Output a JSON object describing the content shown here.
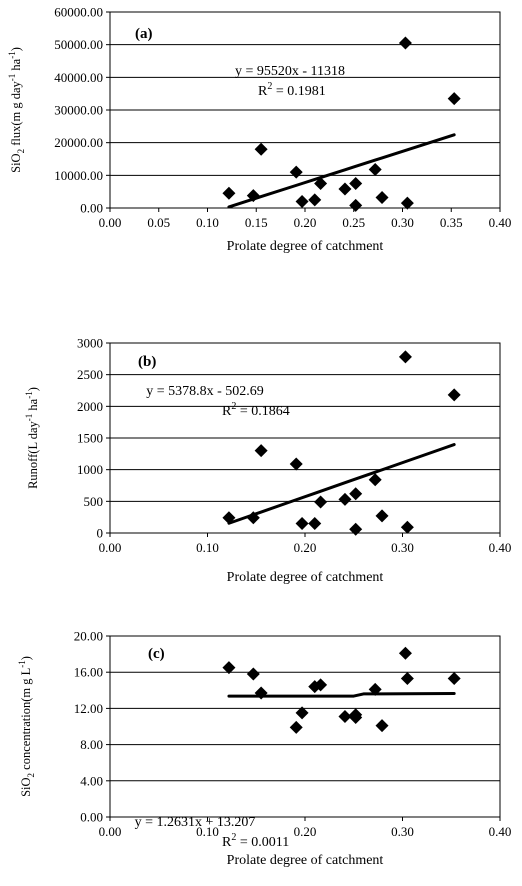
{
  "chart_data": [
    {
      "type": "scatter",
      "panel_label": "(a)",
      "xlabel": "Prolate degree of catchment",
      "ylabel": "SiO2 flux(m g day-1 ha-1)",
      "ylabel_parts": [
        "SiO",
        "2",
        " flux(m g day",
        "-1",
        " ha",
        "-1",
        ")"
      ],
      "xlim": [
        0.0,
        0.4
      ],
      "ylim": [
        0,
        60000
      ],
      "x_ticks": [
        "0.00",
        "0.05",
        "0.10",
        "0.15",
        "0.20",
        "0.25",
        "0.30",
        "0.35",
        "0.40"
      ],
      "y_ticks": [
        "0.00",
        "10000.00",
        "20000.00",
        "30000.00",
        "40000.00",
        "50000.00",
        "60000.00"
      ],
      "grid": "horizontal",
      "points": [
        {
          "x": 0.122,
          "y": 4500
        },
        {
          "x": 0.147,
          "y": 3800
        },
        {
          "x": 0.155,
          "y": 18000
        },
        {
          "x": 0.191,
          "y": 11000
        },
        {
          "x": 0.197,
          "y": 2000
        },
        {
          "x": 0.21,
          "y": 2500
        },
        {
          "x": 0.216,
          "y": 7500
        },
        {
          "x": 0.241,
          "y": 5800
        },
        {
          "x": 0.252,
          "y": 7500
        },
        {
          "x": 0.252,
          "y": 800
        },
        {
          "x": 0.272,
          "y": 11800
        },
        {
          "x": 0.279,
          "y": 3200
        },
        {
          "x": 0.303,
          "y": 50500
        },
        {
          "x": 0.305,
          "y": 1500
        },
        {
          "x": 0.353,
          "y": 33500
        }
      ],
      "trend_label": "y = 95520x - 11318",
      "r2_text": "= 0.1981",
      "trend_points": [
        {
          "x": 0.122,
          "y": 335
        },
        {
          "x": 0.147,
          "y": 2724
        },
        {
          "x": 0.155,
          "y": 3487
        },
        {
          "x": 0.191,
          "y": 6926
        },
        {
          "x": 0.197,
          "y": 7499
        },
        {
          "x": 0.21,
          "y": 8741
        },
        {
          "x": 0.216,
          "y": 9314
        },
        {
          "x": 0.241,
          "y": 11702
        },
        {
          "x": 0.252,
          "y": 12753
        },
        {
          "x": 0.272,
          "y": 14663
        },
        {
          "x": 0.279,
          "y": 15332
        },
        {
          "x": 0.303,
          "y": 17625
        },
        {
          "x": 0.305,
          "y": 17816
        },
        {
          "x": 0.353,
          "y": 22401
        }
      ]
    },
    {
      "type": "scatter",
      "panel_label": "(b)",
      "xlabel": "Prolate degree of catchment",
      "ylabel": "Runoff(L day-1 ha-1)",
      "ylabel_parts": [
        "Runoff(L day",
        "-1",
        " ha",
        "-1",
        ")"
      ],
      "xlim": [
        0.0,
        0.4
      ],
      "ylim": [
        0,
        3000
      ],
      "x_ticks": [
        "0.00",
        "0.10",
        "0.20",
        "0.30",
        "0.40"
      ],
      "y_ticks": [
        "0",
        "500",
        "1000",
        "1500",
        "2000",
        "2500",
        "3000"
      ],
      "grid": "horizontal",
      "points": [
        {
          "x": 0.122,
          "y": 240
        },
        {
          "x": 0.147,
          "y": 240
        },
        {
          "x": 0.155,
          "y": 1300
        },
        {
          "x": 0.191,
          "y": 1090
        },
        {
          "x": 0.197,
          "y": 150
        },
        {
          "x": 0.21,
          "y": 150
        },
        {
          "x": 0.216,
          "y": 490
        },
        {
          "x": 0.241,
          "y": 530
        },
        {
          "x": 0.252,
          "y": 620
        },
        {
          "x": 0.252,
          "y": 60
        },
        {
          "x": 0.272,
          "y": 840
        },
        {
          "x": 0.279,
          "y": 270
        },
        {
          "x": 0.303,
          "y": 2780
        },
        {
          "x": 0.305,
          "y": 90
        },
        {
          "x": 0.353,
          "y": 2180
        }
      ],
      "trend_label": "y = 5378.8x - 502.69",
      "r2_text": "= 0.1864",
      "trend_points": [
        {
          "x": 0.122,
          "y": 154
        },
        {
          "x": 0.147,
          "y": 288
        },
        {
          "x": 0.155,
          "y": 331
        },
        {
          "x": 0.191,
          "y": 525
        },
        {
          "x": 0.21,
          "y": 627
        },
        {
          "x": 0.241,
          "y": 794
        },
        {
          "x": 0.252,
          "y": 853
        },
        {
          "x": 0.272,
          "y": 960
        },
        {
          "x": 0.303,
          "y": 1127
        },
        {
          "x": 0.34,
          "y": 1326
        },
        {
          "x": 0.353,
          "y": 1396
        }
      ]
    },
    {
      "type": "scatter",
      "panel_label": "(c)",
      "xlabel": "Prolate degree of catchment",
      "ylabel": "SiO2 concentration(m g L-1)",
      "ylabel_parts": [
        "SiO",
        "2",
        " concentration(m g L",
        "-1",
        ")"
      ],
      "xlim": [
        0.0,
        0.4
      ],
      "ylim": [
        0,
        20
      ],
      "x_ticks": [
        "0.00",
        "0.10",
        "0.20",
        "0.30",
        "0.40"
      ],
      "y_ticks": [
        "0.00",
        "4.00",
        "8.00",
        "12.00",
        "16.00",
        "20.00"
      ],
      "grid": "horizontal",
      "points": [
        {
          "x": 0.122,
          "y": 16.5
        },
        {
          "x": 0.147,
          "y": 15.8
        },
        {
          "x": 0.155,
          "y": 13.7
        },
        {
          "x": 0.191,
          "y": 9.9
        },
        {
          "x": 0.197,
          "y": 11.5
        },
        {
          "x": 0.21,
          "y": 14.4
        },
        {
          "x": 0.216,
          "y": 14.6
        },
        {
          "x": 0.241,
          "y": 11.1
        },
        {
          "x": 0.252,
          "y": 11.0
        },
        {
          "x": 0.252,
          "y": 11.3
        },
        {
          "x": 0.272,
          "y": 14.1
        },
        {
          "x": 0.279,
          "y": 10.1
        },
        {
          "x": 0.303,
          "y": 18.1
        },
        {
          "x": 0.305,
          "y": 15.3
        },
        {
          "x": 0.353,
          "y": 15.3
        }
      ],
      "trend_label": "y = 1.2631x + 13.207",
      "r2_text": "= 0.0011",
      "trend_points": [
        {
          "x": 0.122,
          "y": 13.36
        },
        {
          "x": 0.25,
          "y": 13.36
        },
        {
          "x": 0.26,
          "y": 13.6
        },
        {
          "x": 0.353,
          "y": 13.65
        }
      ]
    }
  ]
}
